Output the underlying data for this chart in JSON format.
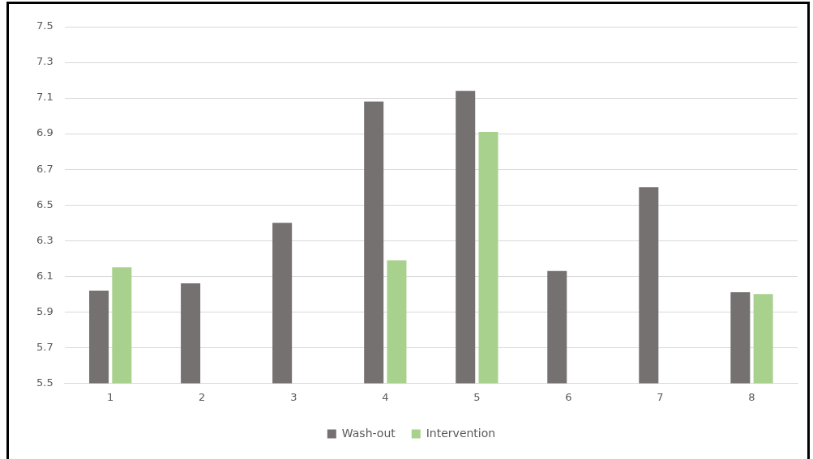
{
  "chart_data": {
    "type": "bar",
    "categories": [
      "1",
      "2",
      "3",
      "4",
      "5",
      "6",
      "7",
      "8"
    ],
    "series": [
      {
        "name": "Wash-out",
        "color": "#767171",
        "values": [
          6.02,
          6.06,
          6.4,
          7.08,
          7.14,
          6.13,
          6.6,
          6.01
        ]
      },
      {
        "name": "Intervention",
        "color": "#a9d18e",
        "values": [
          6.15,
          null,
          null,
          6.19,
          6.91,
          null,
          null,
          6.0
        ]
      }
    ],
    "ylim": [
      5.5,
      7.5
    ],
    "yticks": [
      5.5,
      5.7,
      5.9,
      6.1,
      6.3,
      6.5,
      6.7,
      6.9,
      7.1,
      7.3,
      7.5
    ],
    "grid": "y",
    "legend": "bottom"
  }
}
